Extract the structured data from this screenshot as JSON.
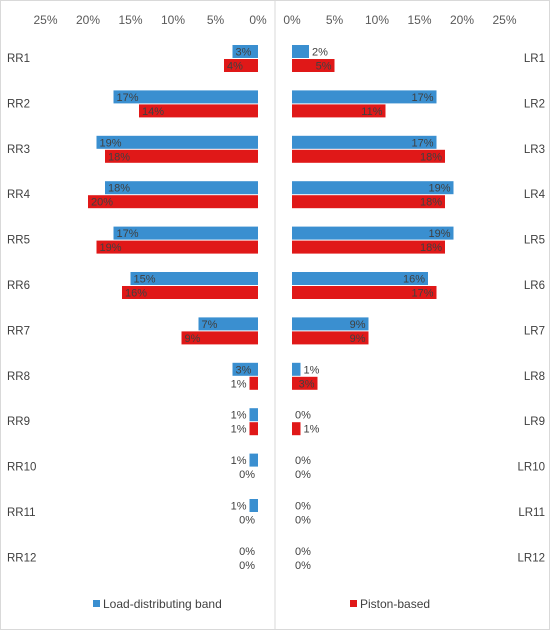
{
  "chart_data": {
    "type": "bar",
    "orientation": "horizontal-butterfly",
    "series_names": [
      "Load-distributing band",
      "Piston-based"
    ],
    "colors": {
      "load": "#3a8fd0",
      "piston": "#e01818"
    },
    "panels": [
      {
        "side": "left",
        "categories": [
          "RR1",
          "RR2",
          "RR3",
          "RR4",
          "RR5",
          "RR6",
          "RR7",
          "RR8",
          "RR9",
          "RR10",
          "RR11",
          "RR12"
        ],
        "series": [
          {
            "name": "Load-distributing band",
            "values": [
              3,
              17,
              19,
              18,
              17,
              15,
              7,
              3,
              1,
              1,
              1,
              0
            ],
            "labels": [
              "3%",
              "17%",
              "19%",
              "18%",
              "17%",
              "15%",
              "7%",
              "3%",
              "1%",
              "1%",
              "1%",
              "0%"
            ]
          },
          {
            "name": "Piston-based",
            "values": [
              4,
              14,
              18,
              20,
              19,
              16,
              9,
              1,
              1,
              0,
              0,
              0
            ],
            "labels": [
              "4%",
              "14%",
              "18%",
              "20%",
              "19%",
              "16%",
              "9%",
              "1%",
              "1%",
              "0%",
              "0%",
              "0%"
            ]
          }
        ],
        "axis_ticks": [
          "25%",
          "20%",
          "15%",
          "10%",
          "5%",
          "0%"
        ],
        "xlim": [
          0,
          25
        ]
      },
      {
        "side": "right",
        "categories": [
          "LR1",
          "LR2",
          "LR3",
          "LR4",
          "LR5",
          "LR6",
          "LR7",
          "LR8",
          "LR9",
          "LR10",
          "LR11",
          "LR12"
        ],
        "series": [
          {
            "name": "Load-distributing band",
            "values": [
              2,
              17,
              17,
              19,
              19,
              16,
              9,
              1,
              0,
              0,
              0,
              0
            ],
            "labels": [
              "2%",
              "17%",
              "17%",
              "19%",
              "19%",
              "16%",
              "9%",
              "1%",
              "0%",
              "0%",
              "0%",
              "0%"
            ]
          },
          {
            "name": "Piston-based",
            "values": [
              5,
              11,
              18,
              18,
              18,
              17,
              9,
              3,
              1,
              0,
              0,
              0
            ],
            "labels": [
              "5%",
              "11%",
              "18%",
              "18%",
              "18%",
              "17%",
              "9%",
              "3%",
              "1%",
              "0%",
              "0%",
              "0%"
            ]
          }
        ],
        "axis_ticks": [
          "0%",
          "5%",
          "10%",
          "15%",
          "20%",
          "25%"
        ],
        "xlim": [
          0,
          25
        ]
      }
    ],
    "legend": [
      "Load-distributing band",
      "Piston-based"
    ],
    "legend_position": "bottom"
  }
}
